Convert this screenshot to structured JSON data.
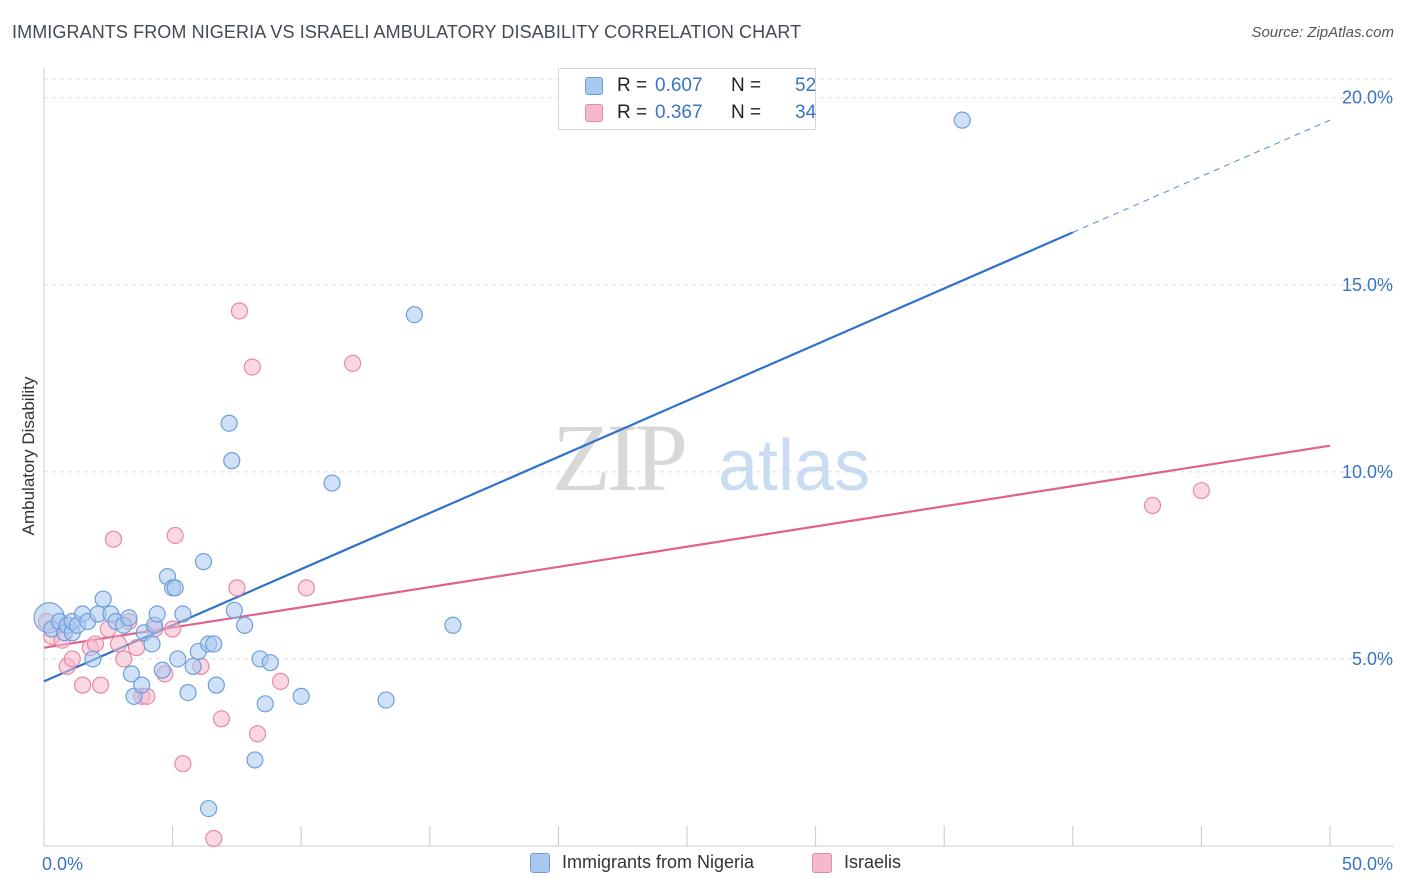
{
  "title": "IMMIGRANTS FROM NIGERIA VS ISRAELI AMBULATORY DISABILITY CORRELATION CHART",
  "source": "Source: ZipAtlas.com",
  "watermark": {
    "zip": "ZIP",
    "atlas": "atlas"
  },
  "legend": {
    "rows": [
      {
        "r_label": "R =",
        "r_value": "0.607",
        "n_label": "N =",
        "n_value": "52"
      },
      {
        "r_label": "R =",
        "r_value": "0.367",
        "n_label": "N =",
        "n_value": "34"
      }
    ]
  },
  "bottom_legend": [
    {
      "label": "Immigrants from Nigeria"
    },
    {
      "label": "Israelis"
    }
  ],
  "colors": {
    "blue_fill": "#a9c8f0",
    "blue_stroke": "#6f9fd8",
    "blue_line": "#2f72c9",
    "pink_fill": "#f6b8cb",
    "pink_stroke": "#e68aa7",
    "pink_line": "#e0608e",
    "tick_text": "#3a74c4",
    "grid": "#dddddd"
  },
  "chart_data": {
    "type": "scatter",
    "title": "IMMIGRANTS FROM NIGERIA VS ISRAELI AMBULATORY DISABILITY CORRELATION CHART",
    "xlabel": "",
    "ylabel": "Ambulatory Disability",
    "xlim": [
      0,
      50
    ],
    "ylim": [
      0,
      20.5
    ],
    "x_tick_labels": [
      {
        "value": 0,
        "label": "0.0%"
      },
      {
        "value": 50,
        "label": "50.0%"
      }
    ],
    "y_tick_labels": [
      {
        "value": 5,
        "label": "5.0%"
      },
      {
        "value": 10,
        "label": "10.0%"
      },
      {
        "value": 15,
        "label": "15.0%"
      },
      {
        "value": 20,
        "label": "20.0%"
      }
    ],
    "grid": "horizontal dashed",
    "legend_position": "top-center",
    "series": [
      {
        "name": "Immigrants from Nigeria",
        "color": "#a9c8f0",
        "trend": {
          "x": [
            0,
            40
          ],
          "y": [
            4.4,
            16.4
          ],
          "dashed_extension_to": [
            50,
            19.4
          ]
        },
        "points": [
          [
            0.2,
            6.1
          ],
          [
            0.3,
            5.8
          ],
          [
            0.6,
            6.0
          ],
          [
            0.8,
            5.7
          ],
          [
            0.9,
            5.9
          ],
          [
            1.1,
            5.7
          ],
          [
            1.1,
            6.0
          ],
          [
            1.3,
            5.9
          ],
          [
            1.5,
            6.2
          ],
          [
            1.7,
            6.0
          ],
          [
            1.9,
            5.0
          ],
          [
            2.1,
            6.2
          ],
          [
            2.3,
            6.6
          ],
          [
            2.6,
            6.2
          ],
          [
            2.8,
            6.0
          ],
          [
            3.1,
            5.9
          ],
          [
            3.3,
            6.1
          ],
          [
            3.4,
            4.6
          ],
          [
            3.5,
            4.0
          ],
          [
            3.8,
            4.3
          ],
          [
            3.9,
            5.7
          ],
          [
            4.2,
            5.4
          ],
          [
            4.3,
            5.9
          ],
          [
            4.4,
            6.2
          ],
          [
            4.6,
            4.7
          ],
          [
            4.8,
            7.2
          ],
          [
            5.0,
            6.9
          ],
          [
            5.2,
            5.0
          ],
          [
            5.1,
            6.9
          ],
          [
            5.4,
            6.2
          ],
          [
            5.6,
            4.1
          ],
          [
            5.8,
            4.8
          ],
          [
            6.0,
            5.2
          ],
          [
            6.2,
            7.6
          ],
          [
            6.4,
            1.0
          ],
          [
            6.4,
            5.4
          ],
          [
            6.6,
            5.4
          ],
          [
            6.7,
            4.3
          ],
          [
            7.2,
            11.3
          ],
          [
            7.3,
            10.3
          ],
          [
            7.4,
            6.3
          ],
          [
            7.8,
            5.9
          ],
          [
            8.2,
            2.3
          ],
          [
            8.4,
            5.0
          ],
          [
            8.6,
            3.8
          ],
          [
            8.8,
            4.9
          ],
          [
            10.0,
            4.0
          ],
          [
            11.2,
            9.7
          ],
          [
            13.3,
            3.9
          ],
          [
            14.4,
            14.2
          ],
          [
            15.9,
            5.9
          ],
          [
            35.7,
            19.4
          ]
        ]
      },
      {
        "name": "Israelis",
        "color": "#f6b8cb",
        "trend": {
          "x": [
            0,
            50
          ],
          "y": [
            5.3,
            10.7
          ]
        },
        "points": [
          [
            0.3,
            5.6
          ],
          [
            0.7,
            5.5
          ],
          [
            0.9,
            4.8
          ],
          [
            1.1,
            5.0
          ],
          [
            1.5,
            4.3
          ],
          [
            1.8,
            5.3
          ],
          [
            2.0,
            5.4
          ],
          [
            2.2,
            4.3
          ],
          [
            2.5,
            5.8
          ],
          [
            2.7,
            8.2
          ],
          [
            2.9,
            5.4
          ],
          [
            3.1,
            5.0
          ],
          [
            3.3,
            6.0
          ],
          [
            3.6,
            5.3
          ],
          [
            3.8,
            4.0
          ],
          [
            4.0,
            4.0
          ],
          [
            4.3,
            5.8
          ],
          [
            4.7,
            4.6
          ],
          [
            5.0,
            5.8
          ],
          [
            5.1,
            8.3
          ],
          [
            5.4,
            2.2
          ],
          [
            6.1,
            4.8
          ],
          [
            6.6,
            0.2
          ],
          [
            6.9,
            3.4
          ],
          [
            7.5,
            6.9
          ],
          [
            7.6,
            14.3
          ],
          [
            8.1,
            12.8
          ],
          [
            8.3,
            3.0
          ],
          [
            9.2,
            4.4
          ],
          [
            10.2,
            6.9
          ],
          [
            12.0,
            12.9
          ],
          [
            43.1,
            9.1
          ],
          [
            45.0,
            9.5
          ],
          [
            0.1,
            6.0
          ]
        ]
      }
    ]
  }
}
